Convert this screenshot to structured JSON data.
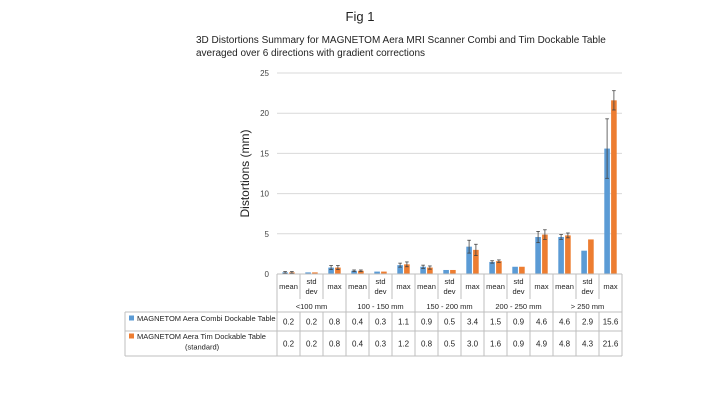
{
  "figure_label": "Fig 1",
  "chart_data": {
    "type": "bar",
    "title": "3D Distortions Summary for MAGNETOM Aera MRI Scanner Combi and Tim Dockable Table averaged over 6 directions with gradient corrections",
    "ylabel": "Distortions (mm)",
    "xlabel": "",
    "ylim": [
      0,
      25
    ],
    "yticks": [
      "0",
      "5",
      "10",
      "15",
      "20",
      "25"
    ],
    "grid": true,
    "groups": [
      "<100 mm",
      "100 - 150 mm",
      "150 - 200 mm",
      "200 - 250 mm",
      "> 250 mm"
    ],
    "stats": [
      [
        "mean"
      ],
      [
        "std",
        "dev"
      ],
      [
        "max"
      ]
    ],
    "colors": {
      "combi": "#5B9BD5",
      "tim": "#ED7D31"
    },
    "series": [
      {
        "name": "MAGNETOM Aera Combi Dockable Table",
        "values": [
          0.2,
          0.2,
          0.8,
          0.4,
          0.3,
          1.1,
          0.9,
          0.5,
          3.4,
          1.5,
          0.9,
          4.6,
          4.6,
          2.9,
          15.6
        ],
        "labels": [
          "0.2",
          "0.2",
          "0.8",
          "0.4",
          "0.3",
          "1.1",
          "0.9",
          "0.5",
          "3.4",
          "1.5",
          "0.9",
          "4.6",
          "4.6",
          "2.9",
          "15.6"
        ],
        "errors": [
          0.1,
          0,
          0.25,
          0.1,
          0,
          0.25,
          0.2,
          0,
          0.8,
          0.15,
          0,
          0.7,
          0.3,
          0,
          3.7
        ]
      },
      {
        "name": "MAGNETOM Aera Tim Dockable Table (standard)",
        "label_lines": [
          "MAGNETOM Aera Tim Dockable Table",
          "(standard)"
        ],
        "values": [
          0.2,
          0.2,
          0.8,
          0.4,
          0.3,
          1.2,
          0.8,
          0.5,
          3.0,
          1.6,
          0.9,
          4.9,
          4.8,
          4.3,
          21.6
        ],
        "labels": [
          "0.2",
          "0.2",
          "0.8",
          "0.4",
          "0.3",
          "1.2",
          "0.8",
          "0.5",
          "3.0",
          "1.6",
          "0.9",
          "4.9",
          "4.8",
          "4.3",
          "21.6"
        ],
        "errors": [
          0.1,
          0,
          0.25,
          0.1,
          0,
          0.3,
          0.2,
          0,
          0.7,
          0.15,
          0,
          0.6,
          0.3,
          0,
          1.2
        ]
      }
    ]
  }
}
